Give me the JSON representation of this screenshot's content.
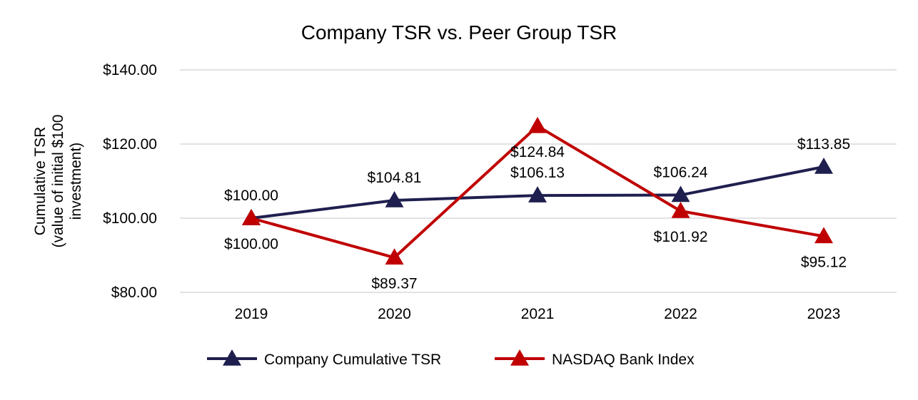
{
  "chart_data": {
    "type": "line",
    "title": "Company TSR vs. Peer Group TSR",
    "ylabel_lines": [
      "Cumulative TSR",
      "(value of initial $100",
      "investment)"
    ],
    "xlabel": "",
    "categories": [
      "2019",
      "2020",
      "2021",
      "2022",
      "2023"
    ],
    "ylim": [
      80,
      140
    ],
    "yticks": [
      80,
      100,
      120,
      140
    ],
    "ytick_labels": [
      "$80.00",
      "$100.00",
      "$120.00",
      "$140.00"
    ],
    "grid": true,
    "legend_position": "bottom",
    "series": [
      {
        "name": "Company Cumulative TSR",
        "color": "#1f1f4f",
        "marker": "triangle",
        "values": [
          100.0,
          104.81,
          106.13,
          106.24,
          113.85
        ],
        "labels": [
          "$100.00",
          "$104.81",
          "$106.13",
          "$106.24",
          "$113.85"
        ],
        "label_side": [
          "above",
          "above",
          "above",
          "above",
          "above"
        ]
      },
      {
        "name": "NASDAQ Bank Index",
        "color": "#c00000",
        "marker": "triangle",
        "values": [
          100.0,
          89.37,
          124.84,
          101.92,
          95.12
        ],
        "labels": [
          "$100.00",
          "$89.37",
          "$124.84",
          "$101.92",
          "$95.12"
        ],
        "label_side": [
          "below",
          "below",
          "below",
          "below",
          "below"
        ]
      }
    ]
  }
}
